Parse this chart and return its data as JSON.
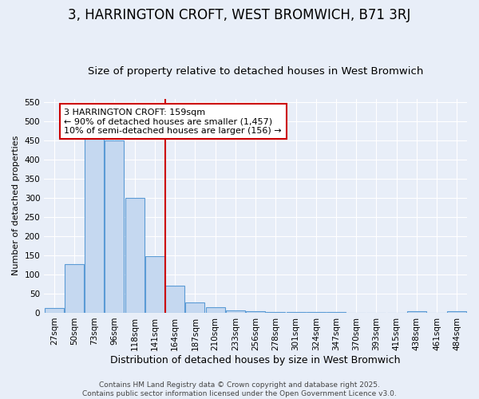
{
  "title": "3, HARRINGTON CROFT, WEST BROMWICH, B71 3RJ",
  "subtitle": "Size of property relative to detached houses in West Bromwich",
  "xlabel": "Distribution of detached houses by size in West Bromwich",
  "ylabel": "Number of detached properties",
  "categories": [
    "27sqm",
    "50sqm",
    "73sqm",
    "96sqm",
    "118sqm",
    "141sqm",
    "164sqm",
    "187sqm",
    "210sqm",
    "233sqm",
    "256sqm",
    "278sqm",
    "301sqm",
    "324sqm",
    "347sqm",
    "370sqm",
    "393sqm",
    "415sqm",
    "438sqm",
    "461sqm",
    "484sqm"
  ],
  "values": [
    13,
    128,
    455,
    450,
    300,
    148,
    70,
    27,
    15,
    7,
    5,
    3,
    2,
    2,
    2,
    0,
    0,
    0,
    5,
    0,
    5
  ],
  "bar_color": "#c5d8f0",
  "bar_edge_color": "#5b9bd5",
  "vline_color": "#cc0000",
  "vline_x_index": 6,
  "annotation_line1": "3 HARRINGTON CROFT: 159sqm",
  "annotation_line2": "← 90% of detached houses are smaller (1,457)",
  "annotation_line3": "10% of semi-detached houses are larger (156) →",
  "annotation_box_color": "#ffffff",
  "annotation_box_edge_color": "#cc0000",
  "ylim": [
    0,
    560
  ],
  "yticks": [
    0,
    50,
    100,
    150,
    200,
    250,
    300,
    350,
    400,
    450,
    500,
    550
  ],
  "bg_color": "#e8eef8",
  "grid_color": "#ffffff",
  "footer_line1": "Contains HM Land Registry data © Crown copyright and database right 2025.",
  "footer_line2": "Contains public sector information licensed under the Open Government Licence v3.0.",
  "title_fontsize": 12,
  "subtitle_fontsize": 9.5,
  "xlabel_fontsize": 9,
  "ylabel_fontsize": 8,
  "tick_fontsize": 7.5,
  "annotation_fontsize": 8,
  "footer_fontsize": 6.5
}
